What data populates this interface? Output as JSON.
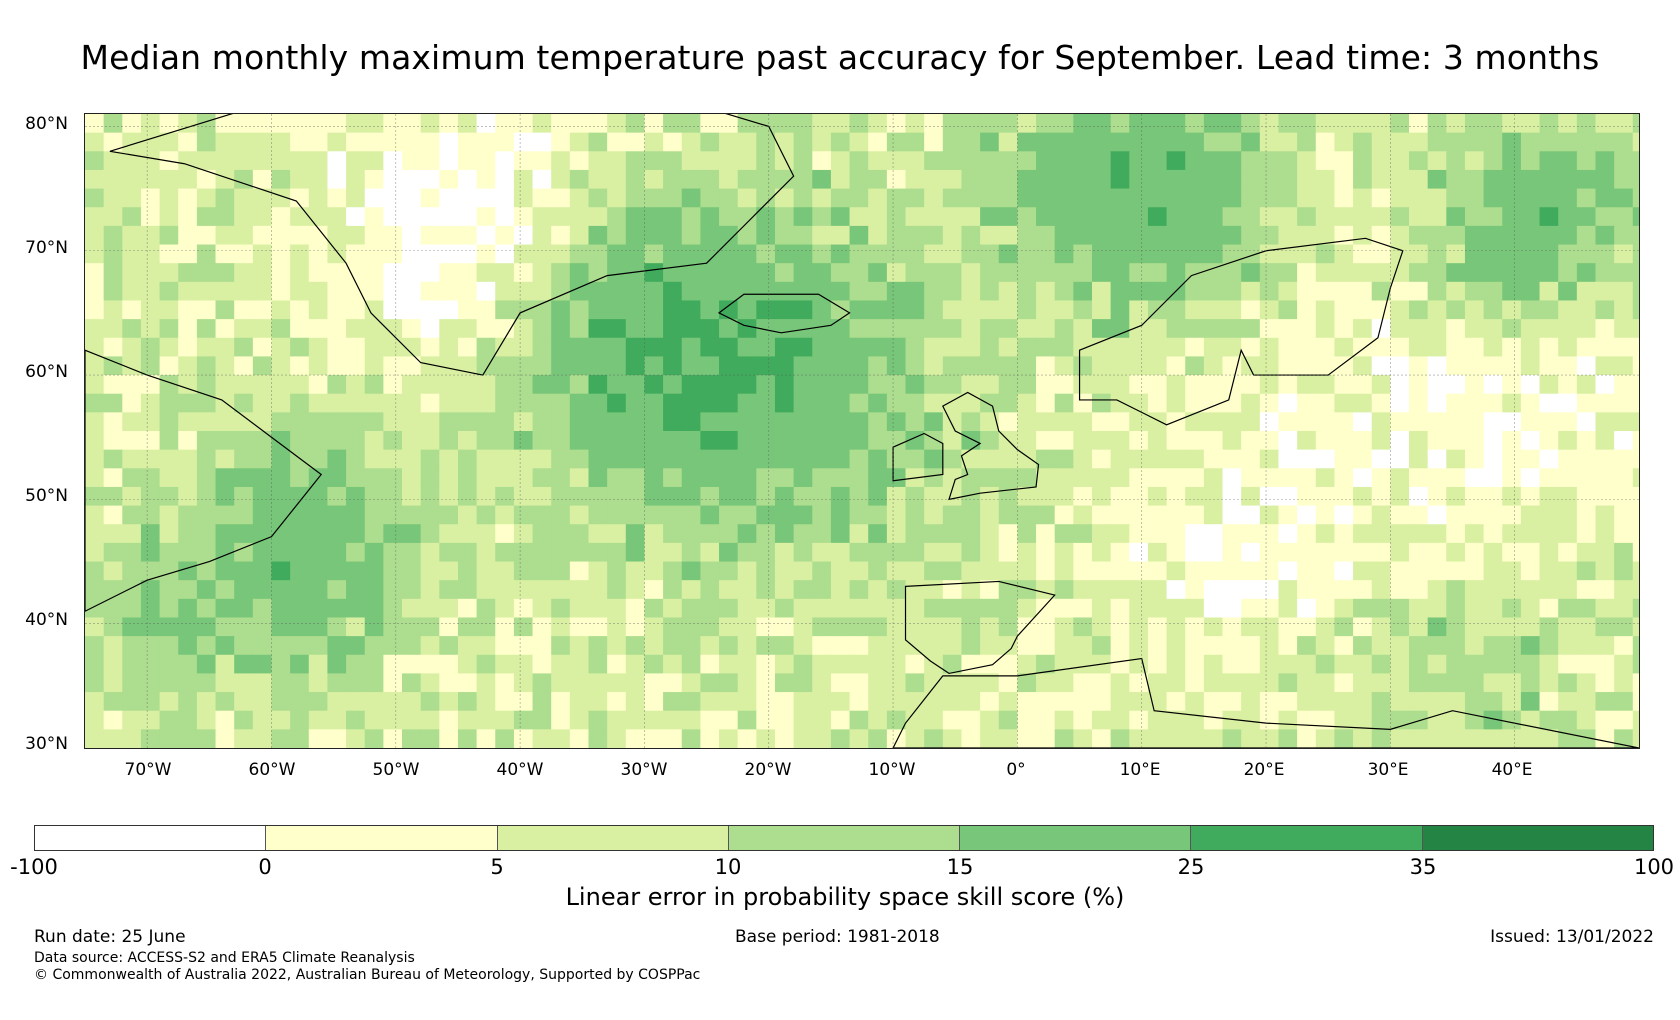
{
  "title": "Median monthly maximum temperature past accuracy for September. Lead time: 3 months",
  "map": {
    "lat_labels": [
      "80°N",
      "70°N",
      "60°N",
      "50°N",
      "40°N",
      "30°N"
    ],
    "lon_labels": [
      "70°W",
      "60°W",
      "50°W",
      "40°W",
      "30°W",
      "20°W",
      "10°W",
      "0°",
      "10°E",
      "20°E",
      "30°E",
      "40°E"
    ],
    "extent": {
      "lon": [
        -75,
        50
      ],
      "lat": [
        30,
        81
      ]
    }
  },
  "colorbar": {
    "tick_labels": [
      "-100",
      "0",
      "5",
      "10",
      "15",
      "25",
      "35",
      "100"
    ],
    "colors": [
      "#ffffff",
      "#ffffcc",
      "#d9f0a3",
      "#addd8e",
      "#78c679",
      "#41ab5d",
      "#238443"
    ],
    "label": "Linear error in probability space skill score (%)"
  },
  "footer": {
    "run_date": "Run date: 25 June",
    "base_period": "Base period: 1981-2018",
    "issued": "Issued: 13/01/2022",
    "data_source": "Data source: ACCESS-S2 and ERA5 Climate Reanalysis",
    "copyright": "© Commonwealth of Australia 2022, Australian Bureau of Meteorology, Supported by COSPPac"
  }
}
